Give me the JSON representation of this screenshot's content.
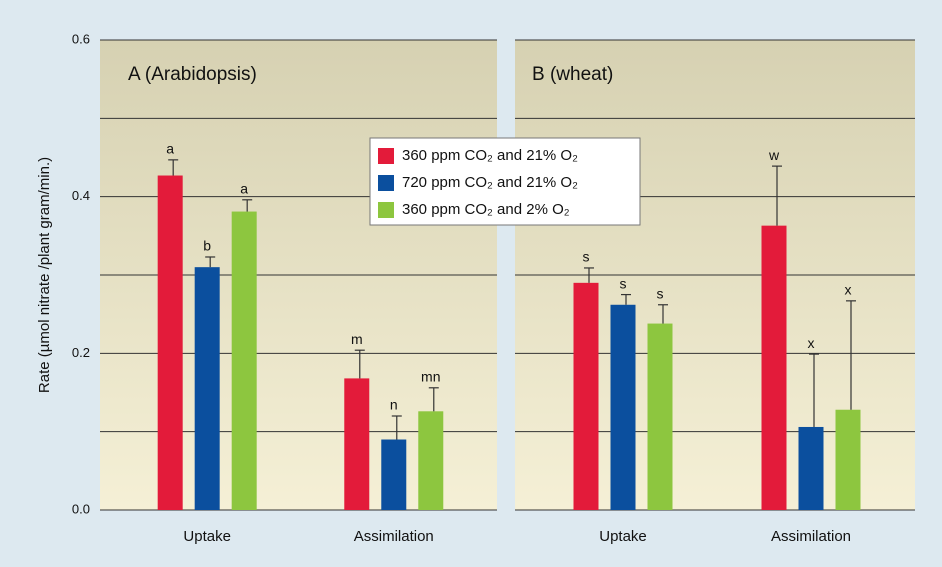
{
  "chart_data": {
    "type": "bar",
    "y_label": "Rate (µmol nitrate /plant gram/min.)",
    "ylim": [
      0,
      0.6
    ],
    "yticks": [
      {
        "value": 0,
        "label": "0.0"
      },
      0.2,
      0.4,
      0.6
    ],
    "minor_yticks": [
      0.1,
      0.3,
      0.5
    ],
    "grid": true,
    "series": [
      {
        "name": "360 ppm CO₂ and 21% O₂",
        "color": "#e31b3a"
      },
      {
        "name": "720 ppm CO₂ and 21% O₂",
        "color": "#0b4f9e"
      },
      {
        "name": "360 ppm CO₂ and 2% O₂",
        "color": "#8dc63f"
      }
    ],
    "panels": [
      {
        "title": "A (Arabidopsis)",
        "categories": [
          "Uptake",
          "Assimilation"
        ],
        "series": [
          {
            "values": [
              0.427,
              0.168
            ],
            "errors": [
              0.02,
              0.036
            ],
            "value_labels": [
              "a",
              "m"
            ]
          },
          {
            "values": [
              0.31,
              0.09
            ],
            "errors": [
              0.013,
              0.03
            ],
            "value_labels": [
              "b",
              "n"
            ]
          },
          {
            "values": [
              0.381,
              0.126
            ],
            "errors": [
              0.015,
              0.03
            ],
            "value_labels": [
              "a",
              "mn"
            ]
          }
        ]
      },
      {
        "title": "B (wheat)",
        "categories": [
          "Uptake",
          "Assimilation"
        ],
        "series": [
          {
            "values": [
              0.29,
              0.363
            ],
            "errors": [
              0.019,
              0.076
            ],
            "value_labels": [
              "s",
              "w"
            ]
          },
          {
            "values": [
              0.262,
              0.106
            ],
            "errors": [
              0.013,
              0.093
            ],
            "value_labels": [
              "s",
              "x"
            ]
          },
          {
            "values": [
              0.238,
              0.128
            ],
            "errors": [
              0.024,
              0.139
            ],
            "value_labels": [
              "s",
              "x"
            ]
          }
        ]
      }
    ]
  }
}
